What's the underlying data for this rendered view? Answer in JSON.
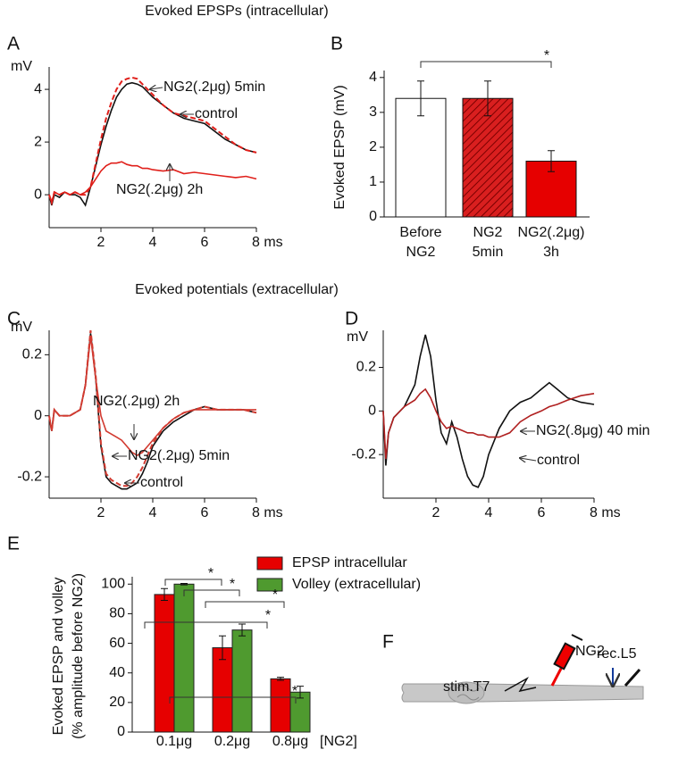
{
  "section_titles": [
    "Evoked EPSPs (intracellular)",
    "Evoked potentials (extracellular)"
  ],
  "chart_data": [
    {
      "type": "line",
      "panel": "A",
      "y_label": "mV",
      "xlim": [
        0,
        8
      ],
      "ylim": [
        -1.25,
        4.85
      ],
      "xticks": [
        2,
        4,
        6,
        {
          "value": 8,
          "label": "8 ms"
        }
      ],
      "yticks": [
        0,
        2,
        4
      ],
      "x": [
        0,
        0.1,
        0.2,
        0.4,
        0.6,
        0.8,
        1.0,
        1.2,
        1.4,
        1.6,
        1.8,
        2.0,
        2.2,
        2.4,
        2.6,
        2.8,
        3.0,
        3.2,
        3.4,
        3.6,
        3.8,
        4.0,
        4.4,
        4.8,
        5.2,
        5.6,
        6.0,
        6.4,
        6.8,
        7.2,
        7.6,
        8.0
      ],
      "series": [
        {
          "color": "#111111",
          "dash": false,
          "values": [
            0,
            -0.4,
            0,
            -0.1,
            0.1,
            0,
            0,
            -0.1,
            -0.4,
            0.3,
            1.1,
            1.9,
            2.6,
            3.2,
            3.7,
            4.0,
            4.2,
            4.25,
            4.2,
            4.1,
            3.9,
            3.7,
            3.4,
            3.1,
            2.9,
            2.8,
            2.7,
            2.4,
            2.1,
            1.9,
            1.7,
            1.6
          ]
        },
        {
          "color": "#e0201b",
          "dash": true,
          "values": [
            0,
            -0.3,
            0.1,
            0,
            0.1,
            0,
            0.1,
            0,
            0,
            0.3,
            1.2,
            2.1,
            2.9,
            3.5,
            4.0,
            4.3,
            4.4,
            4.45,
            4.4,
            4.2,
            4.0,
            3.8,
            3.4,
            3.1,
            3.0,
            2.9,
            2.8,
            2.5,
            2.2,
            1.9,
            1.7,
            1.6
          ]
        },
        {
          "color": "#e0201b",
          "dash": false,
          "values": [
            0,
            -0.3,
            0.1,
            0,
            0.1,
            0,
            0.1,
            0,
            0.1,
            0.3,
            0.6,
            0.9,
            1.1,
            1.2,
            1.2,
            1.25,
            1.15,
            1.1,
            1.1,
            1.0,
            1.0,
            0.95,
            0.9,
            0.95,
            0.8,
            0.85,
            0.8,
            0.75,
            0.7,
            0.65,
            0.7,
            0.6
          ]
        }
      ],
      "annotations": [
        "NG2(.2μg) 5min",
        "control",
        "NG2(.2μg) 2h"
      ]
    },
    {
      "type": "bar",
      "panel": "B",
      "y_label": "Evoked EPSP (mV)",
      "ylim": [
        0,
        4.2
      ],
      "yticks": [
        0,
        1,
        2,
        3,
        4
      ],
      "categories": [
        [
          "Before",
          "NG2"
        ],
        [
          "NG2",
          "5min"
        ],
        [
          "NG2(.2μg)",
          "3h"
        ]
      ],
      "values": [
        3.4,
        3.4,
        1.6
      ],
      "errors": [
        0.5,
        0.5,
        0.3
      ],
      "colors": [
        "#ffffff",
        "#d91f1f",
        "#e60000"
      ],
      "hatch": [
        false,
        true,
        false
      ],
      "significance": [
        "*"
      ]
    },
    {
      "type": "line",
      "panel": "C",
      "y_label": "mV",
      "xlim": [
        0,
        8
      ],
      "ylim": [
        -0.27,
        0.28
      ],
      "xticks": [
        2,
        4,
        6,
        {
          "value": 8,
          "label": "8 ms"
        }
      ],
      "yticks": [
        -0.2,
        0,
        0.2
      ],
      "x": [
        0,
        0.1,
        0.2,
        0.4,
        0.8,
        1.2,
        1.4,
        1.6,
        1.8,
        2.0,
        2.2,
        2.4,
        2.6,
        2.8,
        3.0,
        3.2,
        3.4,
        3.6,
        3.8,
        4.0,
        4.4,
        4.8,
        5.2,
        5.6,
        6.0,
        6.5,
        7,
        7.5,
        8
      ],
      "series": [
        {
          "color": "#111111",
          "dash": false,
          "values": [
            0,
            -0.05,
            0.02,
            0,
            0,
            0.02,
            0.1,
            0.27,
            0.12,
            -0.1,
            -0.2,
            -0.22,
            -0.23,
            -0.24,
            -0.24,
            -0.23,
            -0.22,
            -0.19,
            -0.15,
            -0.1,
            -0.05,
            -0.02,
            0,
            0.02,
            0.03,
            0.02,
            0.02,
            0.02,
            0.01
          ]
        },
        {
          "color": "#d23a30",
          "dash": true,
          "values": [
            0,
            -0.05,
            0.02,
            0,
            0,
            0.02,
            0.1,
            0.28,
            0.13,
            -0.09,
            -0.19,
            -0.21,
            -0.22,
            -0.23,
            -0.23,
            -0.22,
            -0.2,
            -0.17,
            -0.13,
            -0.09,
            -0.04,
            -0.01,
            0.01,
            0.02,
            0.03,
            0.02,
            0.02,
            0.02,
            0.01
          ]
        },
        {
          "color": "#d23a30",
          "dash": false,
          "values": [
            0,
            -0.05,
            0.02,
            0,
            0,
            0.02,
            0.1,
            0.26,
            0.12,
            0.0,
            -0.05,
            -0.06,
            -0.07,
            -0.08,
            -0.1,
            -0.12,
            -0.13,
            -0.12,
            -0.1,
            -0.08,
            -0.04,
            -0.01,
            0.01,
            0.02,
            0.02,
            0.02,
            0.02,
            0.02,
            0.02
          ]
        }
      ],
      "annotations": [
        "NG2(.2μg) 2h",
        "NG2(.2μg) 5min",
        "control"
      ]
    },
    {
      "type": "line",
      "panel": "D",
      "y_label": "mV",
      "xlim": [
        0,
        8
      ],
      "ylim": [
        -0.4,
        0.37
      ],
      "xticks": [
        2,
        4,
        6,
        {
          "value": 8,
          "label": "8 ms"
        }
      ],
      "yticks": [
        -0.2,
        0,
        0.2
      ],
      "x": [
        0,
        0.1,
        0.2,
        0.4,
        0.8,
        1.2,
        1.4,
        1.6,
        1.8,
        2.0,
        2.2,
        2.4,
        2.6,
        2.8,
        3.0,
        3.2,
        3.4,
        3.6,
        3.8,
        4.0,
        4.4,
        4.8,
        5.2,
        5.6,
        6.0,
        6.3,
        6.6,
        7.0,
        7.5,
        8
      ],
      "series": [
        {
          "color": "#111111",
          "dash": false,
          "values": [
            0,
            -0.25,
            -0.1,
            -0.03,
            0.02,
            0.12,
            0.25,
            0.35,
            0.25,
            0.05,
            -0.1,
            -0.15,
            -0.05,
            -0.12,
            -0.22,
            -0.3,
            -0.34,
            -0.35,
            -0.3,
            -0.2,
            -0.08,
            0,
            0.04,
            0.06,
            0.1,
            0.13,
            0.1,
            0.06,
            0.04,
            0.03
          ]
        },
        {
          "color": "#b02020",
          "dash": false,
          "values": [
            0,
            -0.22,
            -0.1,
            -0.03,
            0.02,
            0.05,
            0.08,
            0.1,
            0.06,
            0.0,
            -0.05,
            -0.08,
            -0.07,
            -0.08,
            -0.09,
            -0.1,
            -0.1,
            -0.11,
            -0.11,
            -0.12,
            -0.12,
            -0.1,
            -0.05,
            -0.02,
            0,
            0.02,
            0.03,
            0.05,
            0.07,
            0.08
          ]
        }
      ],
      "annotations": [
        "NG2(.8μg) 40 min",
        "control"
      ]
    },
    {
      "type": "grouped_bar",
      "panel": "E",
      "y_label": [
        "Evoked EPSP and volley",
        "(% amplitude before NG2)"
      ],
      "x_label": "[NG2]",
      "ylim": [
        0,
        105
      ],
      "yticks": [
        0,
        20,
        40,
        60,
        80,
        100
      ],
      "categories": [
        "0.1μg",
        "0.2μg",
        "0.8μg"
      ],
      "series": [
        {
          "name": "EPSP intracellular",
          "color": "#e60000",
          "values": [
            93,
            57,
            36
          ],
          "errors": [
            4,
            8,
            1
          ]
        },
        {
          "name": "Volley (extracellular)",
          "color": "#4f9a2f",
          "values": [
            100,
            69,
            27
          ],
          "errors": [
            0.5,
            4,
            4
          ]
        }
      ],
      "significance": [
        "*",
        "*",
        "*",
        "*",
        "*"
      ]
    }
  ],
  "diagram": {
    "panel": "F",
    "labels": [
      "NG2",
      "stim.T7",
      "rec.L5"
    ]
  }
}
